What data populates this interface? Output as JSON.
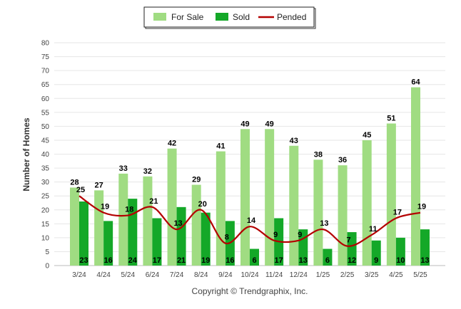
{
  "chart_data": {
    "type": "bar",
    "categories": [
      "3/24",
      "4/24",
      "5/24",
      "6/24",
      "7/24",
      "8/24",
      "9/24",
      "10/24",
      "11/24",
      "12/24",
      "1/25",
      "2/25",
      "3/25",
      "4/25",
      "5/25"
    ],
    "series": [
      {
        "name": "For Sale",
        "kind": "bar",
        "color": "#a0dc82",
        "values": [
          28,
          27,
          33,
          32,
          42,
          29,
          41,
          49,
          49,
          43,
          38,
          36,
          45,
          51,
          64
        ]
      },
      {
        "name": "Sold",
        "kind": "bar",
        "color": "#14a828",
        "values": [
          23,
          16,
          24,
          17,
          21,
          19,
          16,
          6,
          17,
          13,
          6,
          12,
          9,
          10,
          13
        ]
      },
      {
        "name": "Pended",
        "kind": "line",
        "color": "#b40000",
        "values": [
          25,
          19,
          18,
          21,
          13,
          20,
          8,
          14,
          9,
          9,
          13,
          7,
          11,
          17,
          19
        ]
      }
    ],
    "ylabel": "Number of Homes",
    "xlabel": "",
    "ylim": [
      0,
      80
    ],
    "yticks": [
      0,
      5,
      10,
      15,
      20,
      25,
      30,
      35,
      40,
      45,
      50,
      55,
      60,
      65,
      70,
      75,
      80
    ],
    "grid": true,
    "legend_position": "top-center"
  },
  "legend": {
    "for_sale": "For Sale",
    "sold": "Sold",
    "pended": "Pended"
  },
  "footer": {
    "copyright": "Copyright © Trendgraphix, Inc."
  }
}
